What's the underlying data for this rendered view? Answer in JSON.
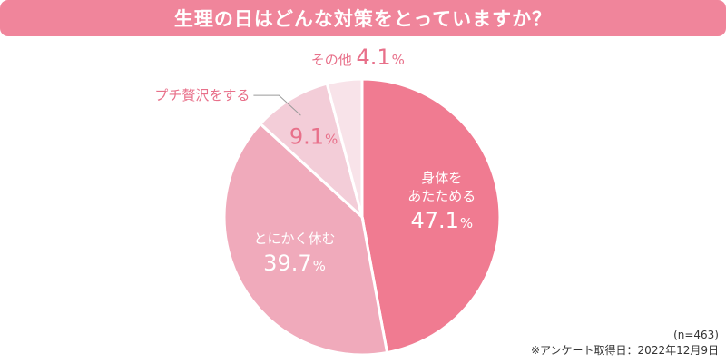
{
  "title": "生理の日はどんな対策をとっていますか？",
  "chart_data": {
    "type": "pie",
    "slices": [
      {
        "label_lines": [
          "身体を",
          "あたためる"
        ],
        "value": 47.1,
        "color": "#f07b91"
      },
      {
        "label_lines": [
          "とにかく休む"
        ],
        "value": 39.7,
        "color": "#f0aabb"
      },
      {
        "label_lines": [
          "プチ贅沢をする"
        ],
        "value": 9.1,
        "color": "#f3cdd8"
      },
      {
        "label_lines": [
          "その他"
        ],
        "value": 4.1,
        "color": "#f8e3e9"
      }
    ],
    "percent_sign": "%",
    "direction": "clockwise from top"
  },
  "notes": {
    "sample_size": "(n=463)",
    "survey_date": "※アンケート取得日：2022年12月9日"
  }
}
